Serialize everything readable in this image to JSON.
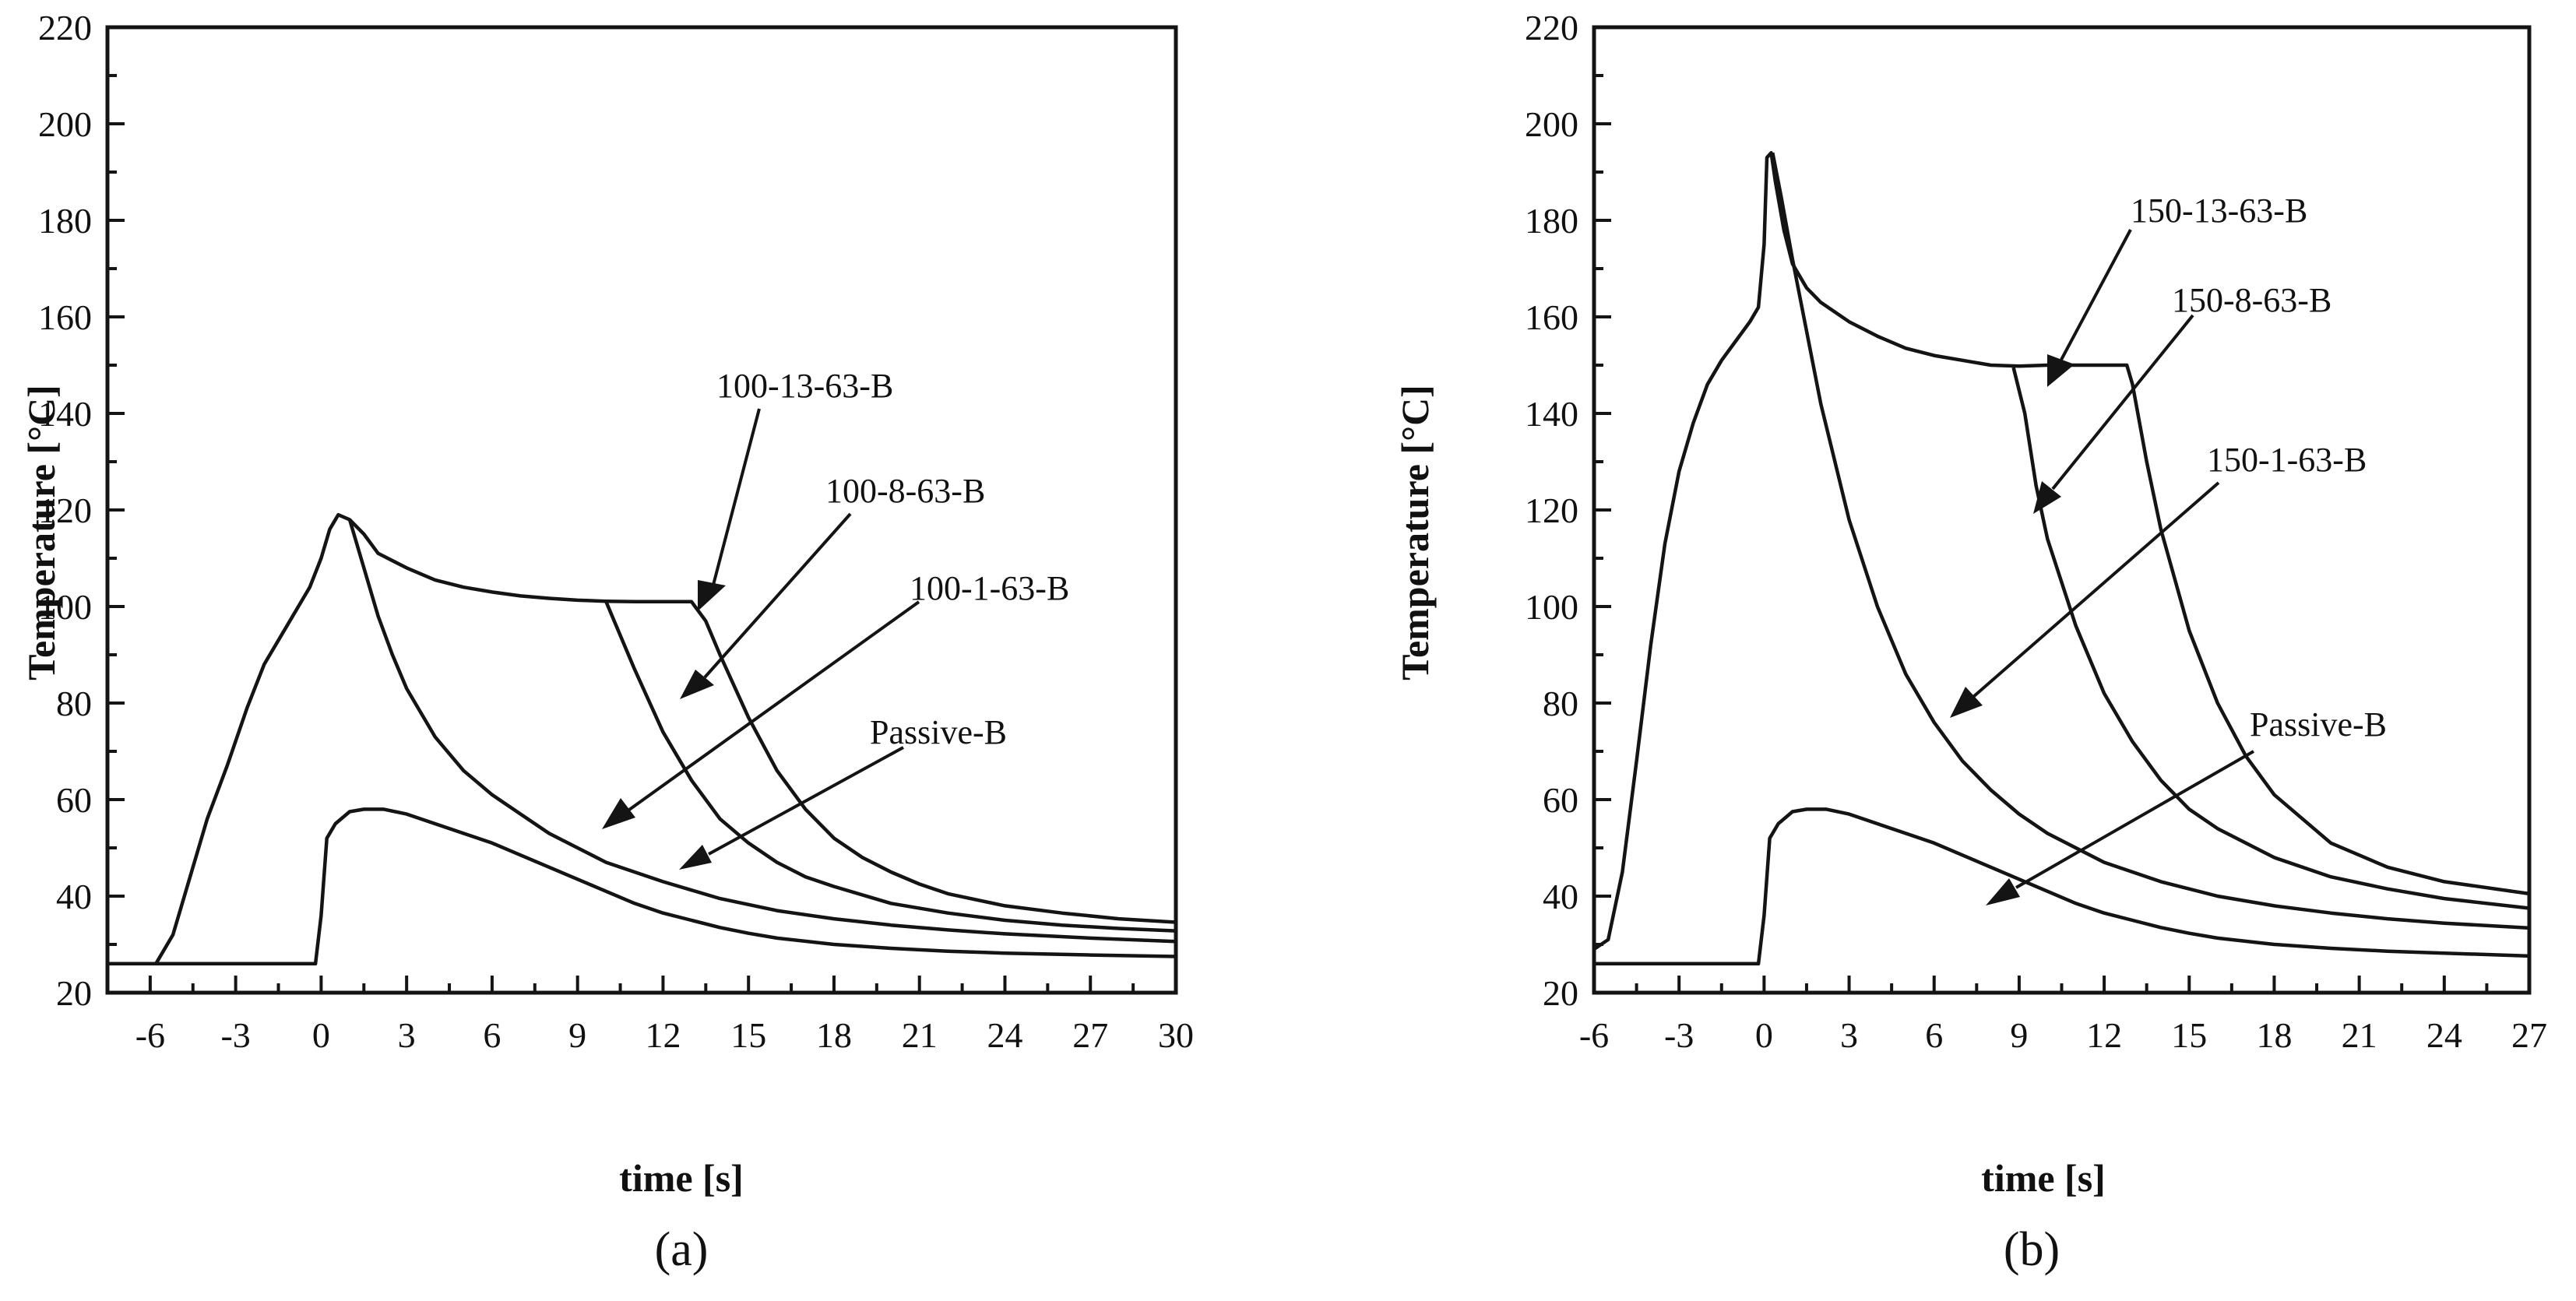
{
  "chart_data": [
    {
      "type": "line",
      "panel_label": "(a)",
      "xlabel": "time [s]",
      "ylabel": "Temperature [°C]",
      "xlim": [
        -7.5,
        30
      ],
      "ylim": [
        20,
        220
      ],
      "xticks": [
        -6,
        -3,
        0,
        3,
        6,
        9,
        12,
        15,
        18,
        21,
        24,
        27,
        30
      ],
      "yticks": [
        20,
        40,
        60,
        80,
        100,
        120,
        140,
        160,
        180,
        200,
        220
      ],
      "grid": false,
      "series": [
        {
          "name": "100-13-63-B",
          "x": [
            -7.5,
            -5.8,
            -5.2,
            -4.6,
            -4,
            -3.3,
            -2.6,
            -2,
            -1.2,
            -0.4,
            0,
            0.3,
            0.6,
            1,
            1.5,
            2,
            3,
            4,
            5,
            6,
            7,
            8,
            9,
            10,
            11,
            12,
            13,
            13.5,
            14,
            15,
            16,
            17,
            18,
            19,
            20,
            21,
            22,
            24,
            26,
            28,
            30
          ],
          "y": [
            26,
            26,
            32,
            44,
            56,
            67,
            79,
            88,
            96,
            104,
            110,
            116,
            119,
            118,
            115,
            111,
            108,
            105.5,
            104,
            103,
            102.2,
            101.7,
            101.3,
            101.1,
            101,
            101,
            101,
            97,
            90,
            77,
            66,
            58,
            52,
            48,
            45,
            42.5,
            40.5,
            38,
            36.5,
            35.3,
            34.6
          ]
        },
        {
          "name": "100-8-63-B",
          "x": [
            10,
            10.5,
            11,
            12,
            13,
            14,
            15,
            16,
            17,
            18,
            20,
            22,
            24,
            26,
            28,
            30
          ],
          "y": [
            101,
            94,
            87,
            74,
            64,
            56,
            51,
            47,
            44,
            42,
            38.5,
            36.5,
            35,
            34,
            33.3,
            32.8
          ]
        },
        {
          "name": "100-1-63-B",
          "x": [
            1,
            1.5,
            2,
            2.5,
            3,
            4,
            5,
            6,
            7,
            8,
            9,
            10,
            12,
            14,
            16,
            18,
            20,
            22,
            24,
            27,
            30
          ],
          "y": [
            118,
            108,
            98,
            90,
            83,
            73,
            66,
            61,
            57,
            53,
            50,
            47,
            43,
            39.5,
            37,
            35.3,
            34,
            33,
            32.2,
            31.3,
            30.6
          ]
        },
        {
          "name": "Passive-B",
          "x": [
            -7.5,
            -0.2,
            0,
            0.2,
            0.5,
            1,
            1.5,
            2.2,
            3,
            4,
            5,
            6,
            7,
            8,
            9,
            10,
            11,
            12,
            13,
            14,
            15,
            16,
            18,
            20,
            22,
            24,
            27,
            30
          ],
          "y": [
            26,
            26,
            36,
            52,
            55,
            57.5,
            58,
            58,
            57,
            55,
            53,
            51,
            48.5,
            46,
            43.5,
            41,
            38.5,
            36.5,
            35,
            33.5,
            32.3,
            31.3,
            30,
            29.2,
            28.6,
            28.2,
            27.8,
            27.5
          ]
        }
      ],
      "annotations": [
        "100-13-63-B",
        "100-8-63-B",
        "100-1-63-B",
        "Passive-B"
      ]
    },
    {
      "type": "line",
      "panel_label": "(b)",
      "xlabel": "time [s]",
      "ylabel": "Temperature [°C]",
      "xlim": [
        -6,
        27
      ],
      "ylim": [
        20,
        220
      ],
      "xticks": [
        -6,
        -3,
        0,
        3,
        6,
        9,
        12,
        15,
        18,
        21,
        24,
        27
      ],
      "yticks": [
        20,
        40,
        60,
        80,
        100,
        120,
        140,
        160,
        180,
        200,
        220
      ],
      "grid": false,
      "series": [
        {
          "name": "150-13-63-B",
          "x": [
            -6,
            -5.5,
            -5,
            -4.5,
            -4,
            -3.5,
            -3,
            -2.5,
            -2,
            -1.5,
            -1,
            -0.5,
            -0.2,
            0,
            0.1,
            0.25,
            0.4,
            0.7,
            1,
            1.5,
            2,
            3,
            4,
            5,
            6,
            7,
            8,
            9,
            10,
            11,
            12,
            12.8,
            13,
            13.5,
            14,
            15,
            16,
            17,
            18,
            20,
            22,
            24,
            27
          ],
          "y": [
            29,
            31,
            45,
            68,
            92,
            113,
            128,
            138,
            146,
            151,
            155,
            159,
            162,
            175,
            193,
            194,
            188,
            178,
            171,
            166,
            163,
            159,
            156,
            153.5,
            152,
            151,
            150,
            149.8,
            150,
            150,
            150,
            150,
            146,
            130,
            116,
            95,
            80,
            69,
            61,
            51,
            46,
            43,
            40.5
          ]
        },
        {
          "name": "150-8-63-B",
          "x": [
            8.8,
            9.2,
            9.6,
            10,
            11,
            12,
            13,
            14,
            15,
            16,
            18,
            20,
            22,
            24,
            27
          ],
          "y": [
            149.5,
            140,
            125,
            114,
            96,
            82,
            72,
            64,
            58,
            54,
            48,
            44,
            41.5,
            39.5,
            37.5
          ]
        },
        {
          "name": "150-1-63-B",
          "x": [
            0.3,
            0.6,
            1,
            1.5,
            2,
            3,
            4,
            5,
            6,
            7,
            8,
            9,
            10,
            12,
            14,
            16,
            18,
            20,
            22,
            24,
            27
          ],
          "y": [
            194,
            185,
            172,
            157,
            142,
            118,
            100,
            86,
            76,
            68,
            62,
            57,
            53,
            47,
            43,
            40,
            38,
            36.5,
            35.3,
            34.4,
            33.4
          ]
        },
        {
          "name": "Passive-B",
          "x": [
            -6,
            -0.2,
            0,
            0.2,
            0.5,
            1,
            1.5,
            2.2,
            3,
            4,
            5,
            6,
            7,
            8,
            9,
            10,
            11,
            12,
            13,
            14,
            15,
            16,
            18,
            20,
            22,
            24,
            27
          ],
          "y": [
            26,
            26,
            36,
            52,
            55,
            57.5,
            58,
            58,
            57,
            55,
            53,
            51,
            48.5,
            46,
            43.5,
            41,
            38.5,
            36.5,
            35,
            33.5,
            32.3,
            31.3,
            30,
            29.2,
            28.6,
            28.2,
            27.6
          ]
        }
      ],
      "annotations": [
        "150-13-63-B",
        "150-8-63-B",
        "150-1-63-B",
        "Passive-B"
      ]
    }
  ]
}
